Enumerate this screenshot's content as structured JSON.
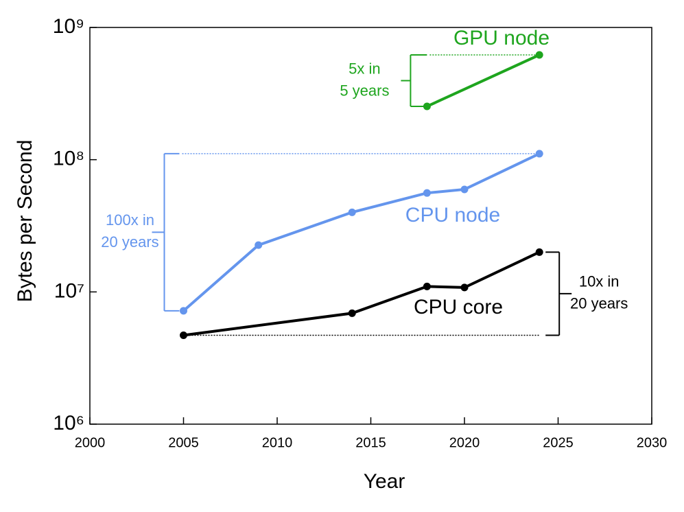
{
  "chart_data": {
    "type": "line",
    "xlabel": "Year",
    "ylabel": "Bytes per Second",
    "log_y": true,
    "xlim": [
      2000,
      2030
    ],
    "xticks": [
      2000,
      2005,
      2010,
      2015,
      2020,
      2025,
      2030
    ],
    "ylim": [
      1000000,
      1000000000
    ],
    "yticks": [
      {
        "value": 1000000,
        "label": "10⁶"
      },
      {
        "value": 10000000,
        "label": "10⁷"
      },
      {
        "value": 100000000,
        "label": "10⁸"
      },
      {
        "value": 1000000000,
        "label": "10⁹"
      }
    ],
    "series": [
      {
        "name": "CPU core",
        "color": "#000000",
        "x": [
          2005,
          2014,
          2018,
          2020,
          2024
        ],
        "values": [
          4700000,
          6900000,
          11000000,
          10800000,
          20000000
        ]
      },
      {
        "name": "CPU node",
        "color": "#6495ed",
        "x": [
          2005,
          2009,
          2014,
          2018,
          2020,
          2024
        ],
        "values": [
          7200000,
          22600000,
          40000000,
          56000000,
          59600000,
          111000000
        ]
      },
      {
        "name": "GPU node",
        "color": "#1ea51e",
        "x": [
          2018,
          2024
        ],
        "values": [
          253000000,
          620000000
        ]
      }
    ],
    "annotations": [
      [
        "10x in",
        "20 years"
      ],
      [
        "100x in",
        "20 years"
      ],
      [
        "5x in",
        "5 years"
      ]
    ]
  }
}
